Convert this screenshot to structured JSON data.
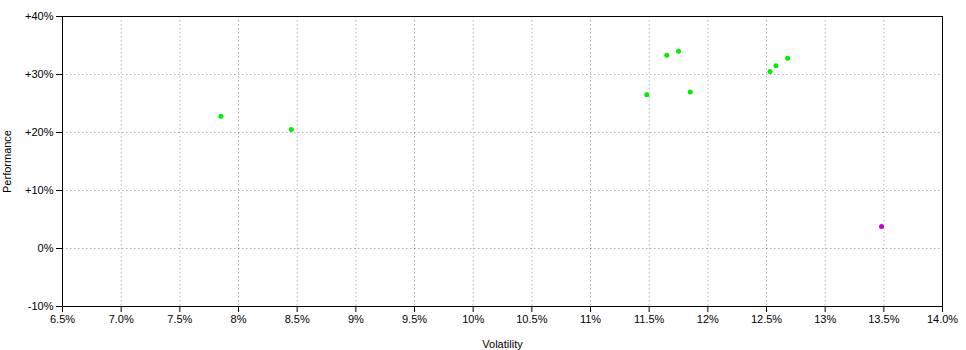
{
  "chart_data": {
    "type": "scatter",
    "xlabel": "Volatility",
    "ylabel": "Performance",
    "xlim": [
      0.065,
      0.14
    ],
    "ylim": [
      -0.1,
      0.4
    ],
    "xticks": [
      {
        "value": 0.065,
        "label": "6.5%"
      },
      {
        "value": 0.07,
        "label": "7.0%"
      },
      {
        "value": 0.075,
        "label": "7.5%"
      },
      {
        "value": 0.08,
        "label": "8%"
      },
      {
        "value": 0.085,
        "label": "8.5%"
      },
      {
        "value": 0.09,
        "label": "9%"
      },
      {
        "value": 0.095,
        "label": "9.5%"
      },
      {
        "value": 0.1,
        "label": "10%"
      },
      {
        "value": 0.105,
        "label": "10.5%"
      },
      {
        "value": 0.11,
        "label": "11%"
      },
      {
        "value": 0.115,
        "label": "11.5%"
      },
      {
        "value": 0.12,
        "label": "12%"
      },
      {
        "value": 0.125,
        "label": "12.5%"
      },
      {
        "value": 0.13,
        "label": "13%"
      },
      {
        "value": 0.135,
        "label": "13.5%"
      },
      {
        "value": 0.14,
        "label": "14.0%"
      }
    ],
    "yticks": [
      {
        "value": -0.1,
        "label": "-10%"
      },
      {
        "value": 0.0,
        "label": "0%"
      },
      {
        "value": 0.1,
        "label": "+10%"
      },
      {
        "value": 0.2,
        "label": "+20%"
      },
      {
        "value": 0.3,
        "label": "+30%"
      },
      {
        "value": 0.4,
        "label": "+40%"
      }
    ],
    "grid": true,
    "series": [
      {
        "color": "#00ee00",
        "x": [
          0.0785,
          0.0845,
          0.1148,
          0.1185,
          0.1165,
          0.1175,
          0.1253,
          0.1258,
          0.1268
        ],
        "values": [
          0.228,
          0.205,
          0.265,
          0.27,
          0.333,
          0.34,
          0.305,
          0.315,
          0.328
        ]
      },
      {
        "color": "#cc00cc",
        "x": [
          0.1348
        ],
        "values": [
          0.038
        ]
      }
    ]
  }
}
